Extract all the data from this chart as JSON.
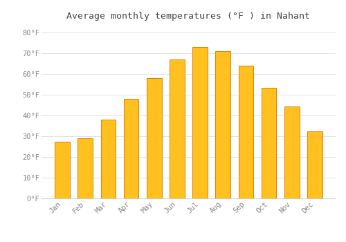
{
  "title": "Average monthly temperatures (°F ) in Nahant",
  "months": [
    "Jan",
    "Feb",
    "Mar",
    "Apr",
    "May",
    "Jun",
    "Jul",
    "Aug",
    "Sep",
    "Oct",
    "Nov",
    "Dec"
  ],
  "values": [
    27.5,
    29.0,
    38.0,
    48.0,
    58.0,
    67.0,
    73.0,
    71.0,
    64.0,
    53.5,
    44.5,
    32.5
  ],
  "bar_color": "#FFC020",
  "bar_edge_color": "#E08000",
  "background_color": "#FFFFFF",
  "plot_bg_color": "#FAFAFA",
  "grid_color": "#DDDDDD",
  "text_color": "#888888",
  "title_color": "#444444",
  "ylim": [
    0,
    84
  ],
  "yticks": [
    0,
    10,
    20,
    30,
    40,
    50,
    60,
    70,
    80
  ],
  "title_fontsize": 9.5,
  "tick_fontsize": 7.5,
  "title_font": "monospace",
  "tick_font": "monospace"
}
